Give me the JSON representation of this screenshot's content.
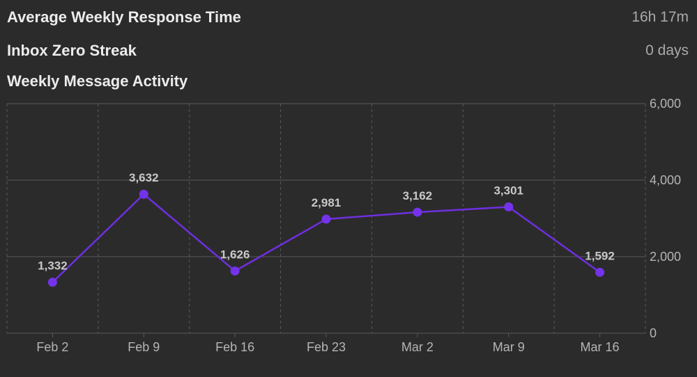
{
  "stats": {
    "response_label": "Average Weekly Response Time",
    "response_value": "16h 17m",
    "streak_label": "Inbox Zero Streak",
    "streak_value": "0 days"
  },
  "chart_data": {
    "type": "line",
    "title": "Weekly Message Activity",
    "categories": [
      "Feb 2",
      "Feb 9",
      "Feb 16",
      "Feb 23",
      "Mar 2",
      "Mar 9",
      "Mar 16"
    ],
    "values": [
      1332,
      3632,
      1626,
      2981,
      3162,
      3301,
      1592
    ],
    "data_labels": [
      "1,332",
      "3,632",
      "1,626",
      "2,981",
      "3,162",
      "3,301",
      "1,592"
    ],
    "y_ticks": [
      0,
      2000,
      4000,
      6000
    ],
    "y_tick_labels": [
      "0",
      "2,000",
      "4,000",
      "6,000"
    ],
    "ylim": [
      0,
      6000
    ],
    "y_axis_position": "right",
    "grid": true,
    "colors": {
      "line": "#6f2fe0",
      "marker": "#7433ea",
      "grid": "#5a5a5a",
      "background": "#2b2b2b"
    }
  }
}
